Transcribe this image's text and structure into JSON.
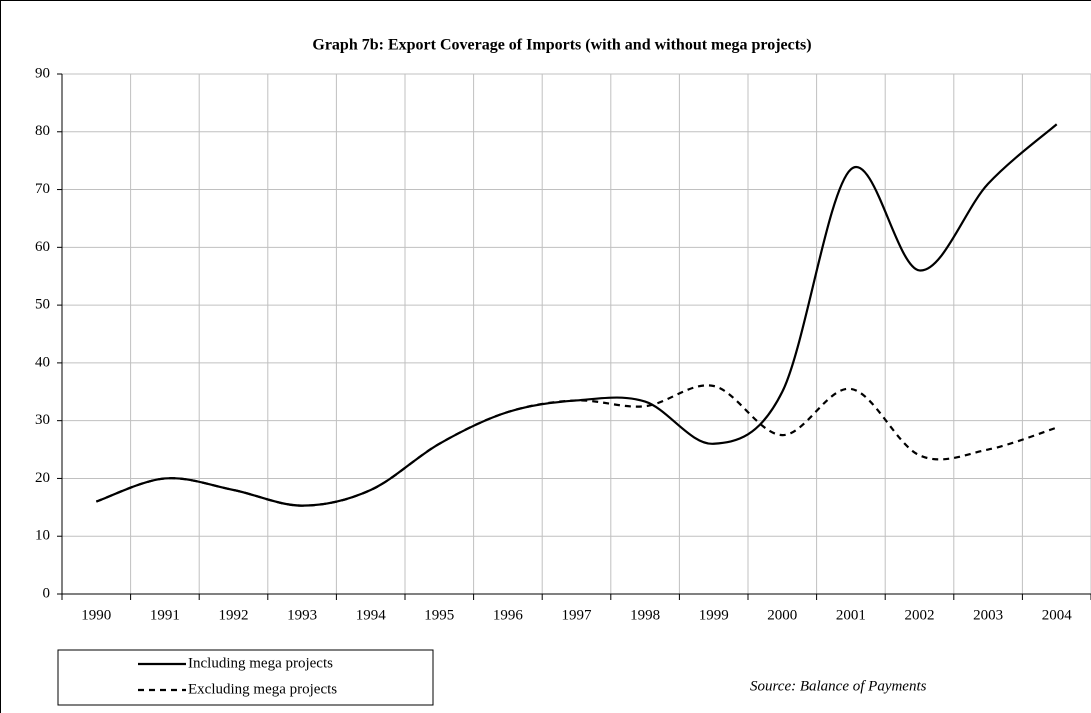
{
  "chart_data": {
    "type": "line",
    "title": "Graph 7b: Export Coverage of Imports (with and without mega projects)",
    "categories": [
      "1990",
      "1991",
      "1992",
      "1993",
      "1994",
      "1995",
      "1996",
      "1997",
      "1998",
      "1999",
      "2000",
      "2001",
      "2002",
      "2003",
      "2004"
    ],
    "series": [
      {
        "name": "Including mega projects",
        "color": "#000000",
        "dash": "solid",
        "values": [
          16,
          20,
          18,
          15.3,
          18,
          26,
          31.5,
          33.5,
          33.3,
          26,
          35,
          73.5,
          56,
          71,
          81.3
        ]
      },
      {
        "name": "Excluding mega projects",
        "color": "#000000",
        "dash": "dashed",
        "values": [
          16,
          20,
          18,
          15.3,
          18,
          26,
          31.5,
          33.5,
          32.5,
          36,
          27.5,
          35.5,
          24,
          25,
          28.8
        ]
      }
    ],
    "ylim": [
      0,
      90
    ],
    "yticks": [
      0,
      10,
      20,
      30,
      40,
      50,
      60,
      70,
      80,
      90
    ],
    "grid": true,
    "legend": "bottom-left",
    "source": "Source: Balance of Payments"
  }
}
